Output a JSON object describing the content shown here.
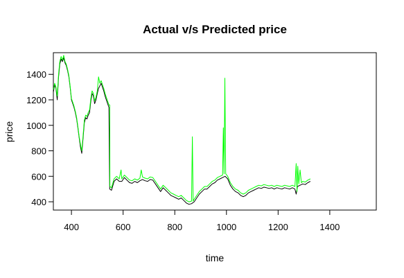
{
  "chart_data": {
    "type": "line",
    "title": "Actual v/s Predicted price",
    "xlabel": "time",
    "ylabel": "price",
    "xlim": [
      330,
      1580
    ],
    "ylim": [
      335,
      1570
    ],
    "xticks": [
      400,
      600,
      800,
      1000,
      1200,
      1400
    ],
    "yticks": [
      400,
      600,
      800,
      1000,
      1200,
      1400
    ],
    "grid": false,
    "legend": "none",
    "series": [
      {
        "color": "#000000",
        "points": [
          [
            330,
            1260
          ],
          [
            335,
            1320
          ],
          [
            340,
            1290
          ],
          [
            345,
            1200
          ],
          [
            350,
            1380
          ],
          [
            355,
            1480
          ],
          [
            360,
            1520
          ],
          [
            365,
            1500
          ],
          [
            370,
            1530
          ],
          [
            375,
            1490
          ],
          [
            380,
            1470
          ],
          [
            385,
            1430
          ],
          [
            390,
            1380
          ],
          [
            395,
            1300
          ],
          [
            400,
            1200
          ],
          [
            405,
            1170
          ],
          [
            410,
            1140
          ],
          [
            415,
            1100
          ],
          [
            420,
            1050
          ],
          [
            425,
            980
          ],
          [
            430,
            900
          ],
          [
            435,
            830
          ],
          [
            440,
            780
          ],
          [
            445,
            900
          ],
          [
            450,
            1020
          ],
          [
            455,
            1060
          ],
          [
            460,
            1050
          ],
          [
            465,
            1080
          ],
          [
            470,
            1100
          ],
          [
            475,
            1190
          ],
          [
            480,
            1250
          ],
          [
            485,
            1230
          ],
          [
            490,
            1170
          ],
          [
            495,
            1200
          ],
          [
            500,
            1250
          ],
          [
            505,
            1290
          ],
          [
            510,
            1310
          ],
          [
            515,
            1330
          ],
          [
            520,
            1300
          ],
          [
            525,
            1270
          ],
          [
            530,
            1230
          ],
          [
            535,
            1200
          ],
          [
            540,
            1170
          ],
          [
            545,
            1140
          ],
          [
            548,
            500
          ],
          [
            555,
            490
          ],
          [
            565,
            560
          ],
          [
            575,
            580
          ],
          [
            585,
            560
          ],
          [
            595,
            560
          ],
          [
            605,
            590
          ],
          [
            615,
            570
          ],
          [
            625,
            550
          ],
          [
            635,
            545
          ],
          [
            645,
            560
          ],
          [
            655,
            550
          ],
          [
            665,
            565
          ],
          [
            675,
            575
          ],
          [
            685,
            565
          ],
          [
            695,
            560
          ],
          [
            705,
            575
          ],
          [
            715,
            570
          ],
          [
            725,
            540
          ],
          [
            735,
            510
          ],
          [
            745,
            480
          ],
          [
            755,
            510
          ],
          [
            765,
            490
          ],
          [
            775,
            470
          ],
          [
            785,
            450
          ],
          [
            795,
            440
          ],
          [
            805,
            430
          ],
          [
            815,
            420
          ],
          [
            825,
            430
          ],
          [
            835,
            410
          ],
          [
            845,
            390
          ],
          [
            855,
            380
          ],
          [
            865,
            385
          ],
          [
            875,
            400
          ],
          [
            885,
            430
          ],
          [
            895,
            460
          ],
          [
            905,
            480
          ],
          [
            915,
            500
          ],
          [
            925,
            500
          ],
          [
            935,
            520
          ],
          [
            945,
            540
          ],
          [
            955,
            550
          ],
          [
            965,
            570
          ],
          [
            975,
            580
          ],
          [
            985,
            590
          ],
          [
            995,
            600
          ],
          [
            1005,
            580
          ],
          [
            1015,
            530
          ],
          [
            1025,
            500
          ],
          [
            1035,
            480
          ],
          [
            1045,
            470
          ],
          [
            1055,
            450
          ],
          [
            1065,
            440
          ],
          [
            1075,
            450
          ],
          [
            1085,
            470
          ],
          [
            1095,
            480
          ],
          [
            1105,
            490
          ],
          [
            1115,
            500
          ],
          [
            1125,
            510
          ],
          [
            1135,
            505
          ],
          [
            1145,
            515
          ],
          [
            1155,
            510
          ],
          [
            1165,
            505
          ],
          [
            1175,
            510
          ],
          [
            1185,
            500
          ],
          [
            1195,
            510
          ],
          [
            1205,
            505
          ],
          [
            1215,
            500
          ],
          [
            1225,
            510
          ],
          [
            1235,
            505
          ],
          [
            1245,
            500
          ],
          [
            1255,
            510
          ],
          [
            1265,
            500
          ],
          [
            1270,
            460
          ],
          [
            1275,
            520
          ],
          [
            1285,
            530
          ],
          [
            1295,
            540
          ],
          [
            1305,
            535
          ],
          [
            1315,
            550
          ],
          [
            1325,
            560
          ]
        ]
      },
      {
        "color": "#00ff00",
        "points": [
          [
            330,
            1280
          ],
          [
            335,
            1330
          ],
          [
            340,
            1300
          ],
          [
            345,
            1230
          ],
          [
            350,
            1400
          ],
          [
            355,
            1500
          ],
          [
            360,
            1540
          ],
          [
            365,
            1510
          ],
          [
            370,
            1550
          ],
          [
            375,
            1500
          ],
          [
            380,
            1480
          ],
          [
            385,
            1440
          ],
          [
            390,
            1390
          ],
          [
            395,
            1310
          ],
          [
            400,
            1210
          ],
          [
            405,
            1180
          ],
          [
            410,
            1150
          ],
          [
            415,
            1110
          ],
          [
            420,
            1060
          ],
          [
            425,
            990
          ],
          [
            430,
            910
          ],
          [
            435,
            850
          ],
          [
            440,
            800
          ],
          [
            445,
            920
          ],
          [
            450,
            1040
          ],
          [
            455,
            1080
          ],
          [
            460,
            1070
          ],
          [
            465,
            1100
          ],
          [
            470,
            1120
          ],
          [
            475,
            1210
          ],
          [
            480,
            1270
          ],
          [
            485,
            1250
          ],
          [
            490,
            1190
          ],
          [
            495,
            1220
          ],
          [
            500,
            1270
          ],
          [
            505,
            1380
          ],
          [
            510,
            1330
          ],
          [
            515,
            1350
          ],
          [
            520,
            1320
          ],
          [
            525,
            1290
          ],
          [
            530,
            1250
          ],
          [
            535,
            1220
          ],
          [
            540,
            1190
          ],
          [
            545,
            1160
          ],
          [
            548,
            1160
          ],
          [
            549,
            520
          ],
          [
            555,
            510
          ],
          [
            565,
            580
          ],
          [
            575,
            600
          ],
          [
            585,
            580
          ],
          [
            592,
            650
          ],
          [
            595,
            580
          ],
          [
            605,
            610
          ],
          [
            615,
            590
          ],
          [
            625,
            570
          ],
          [
            635,
            565
          ],
          [
            645,
            580
          ],
          [
            655,
            570
          ],
          [
            665,
            585
          ],
          [
            670,
            650
          ],
          [
            675,
            595
          ],
          [
            685,
            585
          ],
          [
            695,
            580
          ],
          [
            705,
            595
          ],
          [
            715,
            590
          ],
          [
            725,
            560
          ],
          [
            735,
            530
          ],
          [
            745,
            500
          ],
          [
            755,
            530
          ],
          [
            765,
            510
          ],
          [
            775,
            490
          ],
          [
            785,
            470
          ],
          [
            795,
            460
          ],
          [
            805,
            450
          ],
          [
            815,
            440
          ],
          [
            825,
            450
          ],
          [
            835,
            430
          ],
          [
            845,
            410
          ],
          [
            855,
            400
          ],
          [
            865,
            405
          ],
          [
            868,
            910
          ],
          [
            871,
            405
          ],
          [
            875,
            420
          ],
          [
            885,
            450
          ],
          [
            895,
            480
          ],
          [
            905,
            500
          ],
          [
            915,
            520
          ],
          [
            925,
            520
          ],
          [
            935,
            540
          ],
          [
            945,
            560
          ],
          [
            955,
            570
          ],
          [
            965,
            590
          ],
          [
            975,
            600
          ],
          [
            985,
            610
          ],
          [
            988,
            980
          ],
          [
            991,
            620
          ],
          [
            994,
            1370
          ],
          [
            997,
            620
          ],
          [
            1005,
            600
          ],
          [
            1015,
            550
          ],
          [
            1025,
            520
          ],
          [
            1035,
            500
          ],
          [
            1045,
            490
          ],
          [
            1055,
            470
          ],
          [
            1065,
            460
          ],
          [
            1075,
            470
          ],
          [
            1085,
            490
          ],
          [
            1095,
            500
          ],
          [
            1105,
            510
          ],
          [
            1115,
            520
          ],
          [
            1125,
            530
          ],
          [
            1135,
            525
          ],
          [
            1145,
            535
          ],
          [
            1155,
            530
          ],
          [
            1165,
            525
          ],
          [
            1175,
            530
          ],
          [
            1185,
            520
          ],
          [
            1195,
            530
          ],
          [
            1205,
            525
          ],
          [
            1215,
            520
          ],
          [
            1225,
            530
          ],
          [
            1235,
            525
          ],
          [
            1245,
            520
          ],
          [
            1255,
            530
          ],
          [
            1265,
            520
          ],
          [
            1270,
            700
          ],
          [
            1273,
            480
          ],
          [
            1276,
            680
          ],
          [
            1280,
            540
          ],
          [
            1285,
            650
          ],
          [
            1290,
            550
          ],
          [
            1295,
            560
          ],
          [
            1305,
            555
          ],
          [
            1315,
            570
          ],
          [
            1325,
            580
          ]
        ]
      }
    ]
  }
}
